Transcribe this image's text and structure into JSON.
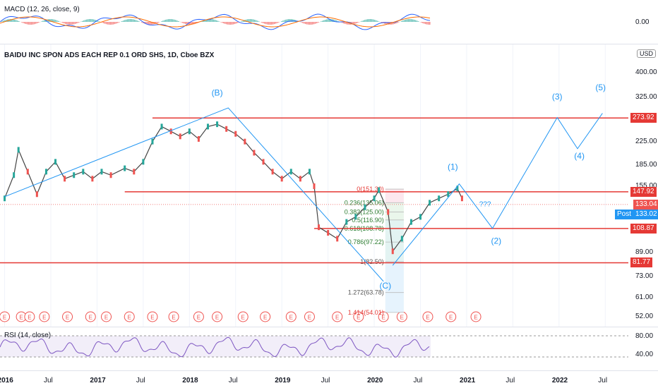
{
  "macd": {
    "title": "MACD (12, 26, close, 9)",
    "axis_label": "0.00"
  },
  "main": {
    "title": "BAIDU INC SPON ADS EACH REP 0.1 ORD SHS, 1D, Cboe BZX",
    "currency": "USD",
    "price_axis": [
      "400.00",
      "325.00",
      "225.00",
      "185.00",
      "155.00",
      "89.00",
      "73.00",
      "61.00",
      "52.00"
    ],
    "hlines": [
      {
        "label": "273.92",
        "color": "#e53935"
      },
      {
        "label": "147.92",
        "color": "#e53935"
      },
      {
        "label": "108.87",
        "color": "#e53935"
      },
      {
        "label": "81.77",
        "color": "#e53935"
      }
    ],
    "last_price": {
      "label": "133.04",
      "color": "#ef5350"
    },
    "post_price": {
      "prefix": "Post",
      "label": "133.02",
      "color": "#2196f3"
    },
    "waves": [
      "(B)",
      "(C)",
      "(1)",
      "(2)",
      "(3)",
      "(4)",
      "(5)",
      "???"
    ],
    "fib": [
      "0(151.30)",
      "0.236(135.06)",
      "0.382(125.00)",
      "0.5(116.90)",
      "0.618(108.78)",
      "0.786(97.22)",
      "1(82.50)",
      "1.272(63.78)",
      "1.414(54.01)"
    ],
    "earnings_marker": "E"
  },
  "rsi": {
    "title": "RSI (14, close)",
    "axis": [
      "80.00",
      "40.00"
    ]
  },
  "time_axis": [
    "2016",
    "Jul",
    "2017",
    "Jul",
    "2018",
    "Jul",
    "2019",
    "Jul",
    "2020",
    "Jul",
    "2021",
    "Jul",
    "2022",
    "Jul"
  ],
  "colors": {
    "accent": "#2196f3",
    "red": "#e53935",
    "wave": "#2196f3",
    "rsi": "#7e57c2",
    "up": "#26a69a",
    "down": "#ef5350"
  },
  "chart_data": {
    "type": "line",
    "title": "BAIDU INC SPON ADS EACH REP 0.1 ORD SHS, 1D, Cboe BZX",
    "ylabel": "USD",
    "y_scale": "log",
    "ylim": [
      50,
      430
    ],
    "x_ticks": [
      "2016",
      "Jul",
      "2017",
      "Jul",
      "2018",
      "Jul",
      "2019",
      "Jul",
      "2020",
      "Jul",
      "2021",
      "Jul",
      "2022",
      "Jul"
    ],
    "series": [
      {
        "values": [
          [
            2016.0,
            140
          ],
          [
            2016.1,
            170
          ],
          [
            2016.15,
            210
          ],
          [
            2016.25,
            175
          ],
          [
            2016.35,
            145
          ],
          [
            2016.45,
            175
          ],
          [
            2016.55,
            190
          ],
          [
            2016.65,
            165
          ],
          [
            2016.75,
            170
          ],
          [
            2016.85,
            175
          ],
          [
            2016.95,
            165
          ],
          [
            2017.05,
            175
          ],
          [
            2017.15,
            170
          ],
          [
            2017.3,
            180
          ],
          [
            2017.4,
            175
          ],
          [
            2017.5,
            190
          ],
          [
            2017.6,
            225
          ],
          [
            2017.7,
            255
          ],
          [
            2017.8,
            245
          ],
          [
            2017.9,
            235
          ],
          [
            2018.0,
            245
          ],
          [
            2018.1,
            230
          ],
          [
            2018.2,
            255
          ],
          [
            2018.3,
            260
          ],
          [
            2018.4,
            250
          ],
          [
            2018.5,
            240
          ],
          [
            2018.6,
            225
          ],
          [
            2018.7,
            205
          ],
          [
            2018.8,
            190
          ],
          [
            2018.9,
            175
          ],
          [
            2019.0,
            165
          ],
          [
            2019.1,
            175
          ],
          [
            2019.2,
            165
          ],
          [
            2019.3,
            175
          ],
          [
            2019.35,
            155
          ],
          [
            2019.4,
            110
          ],
          [
            2019.5,
            105
          ],
          [
            2019.6,
            100
          ],
          [
            2019.7,
            115
          ],
          [
            2019.8,
            120
          ],
          [
            2019.9,
            130
          ],
          [
            2020.0,
            140
          ],
          [
            2020.05,
            150
          ],
          [
            2020.15,
            125
          ],
          [
            2020.2,
            90
          ],
          [
            2020.3,
            100
          ],
          [
            2020.4,
            115
          ],
          [
            2020.5,
            120
          ],
          [
            2020.6,
            135
          ],
          [
            2020.7,
            140
          ],
          [
            2020.8,
            145
          ],
          [
            2020.9,
            152
          ],
          [
            2020.95,
            140
          ]
        ]
      }
    ],
    "levels": [
      273.92,
      147.92,
      108.87,
      81.77
    ],
    "last": 133.04,
    "post": 133.02
  }
}
